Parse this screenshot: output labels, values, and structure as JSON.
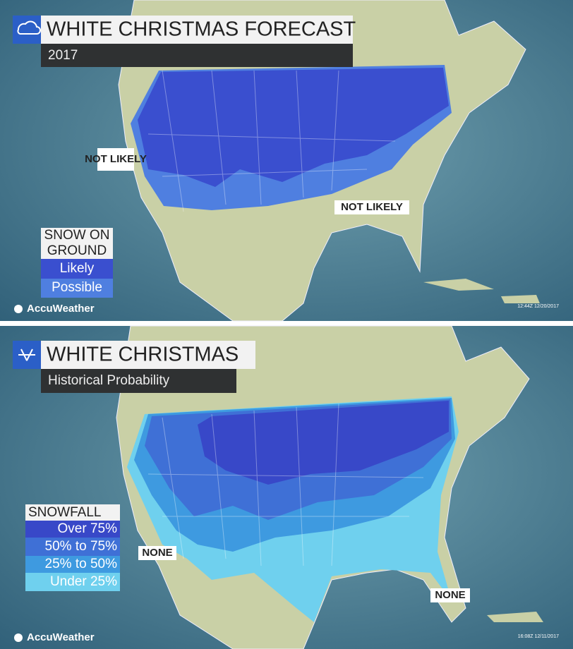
{
  "panels": [
    {
      "title": "WHITE CHRISTMAS FORECAST",
      "subtitle": "2017",
      "map_labels": [
        "NOT LIKELY",
        "NOT LIKELY"
      ],
      "legend": {
        "title_lines": [
          "SNOW ON",
          "GROUND"
        ],
        "items": [
          "Likely",
          "Possible"
        ]
      },
      "brand": "AccuWeather",
      "timestamp": "12:44Z 12/20/2017"
    },
    {
      "title": "WHITE CHRISTMAS",
      "subtitle": "Historical Probability",
      "map_labels": [
        "NONE",
        "NONE"
      ],
      "legend": {
        "title_lines": [
          "SNOWFALL"
        ],
        "items": [
          "Over 75%",
          "50% to 75%",
          "25% to 50%",
          "Under 25%"
        ]
      },
      "brand": "AccuWeather",
      "timestamp": "16:08Z 12/11/2017"
    }
  ]
}
